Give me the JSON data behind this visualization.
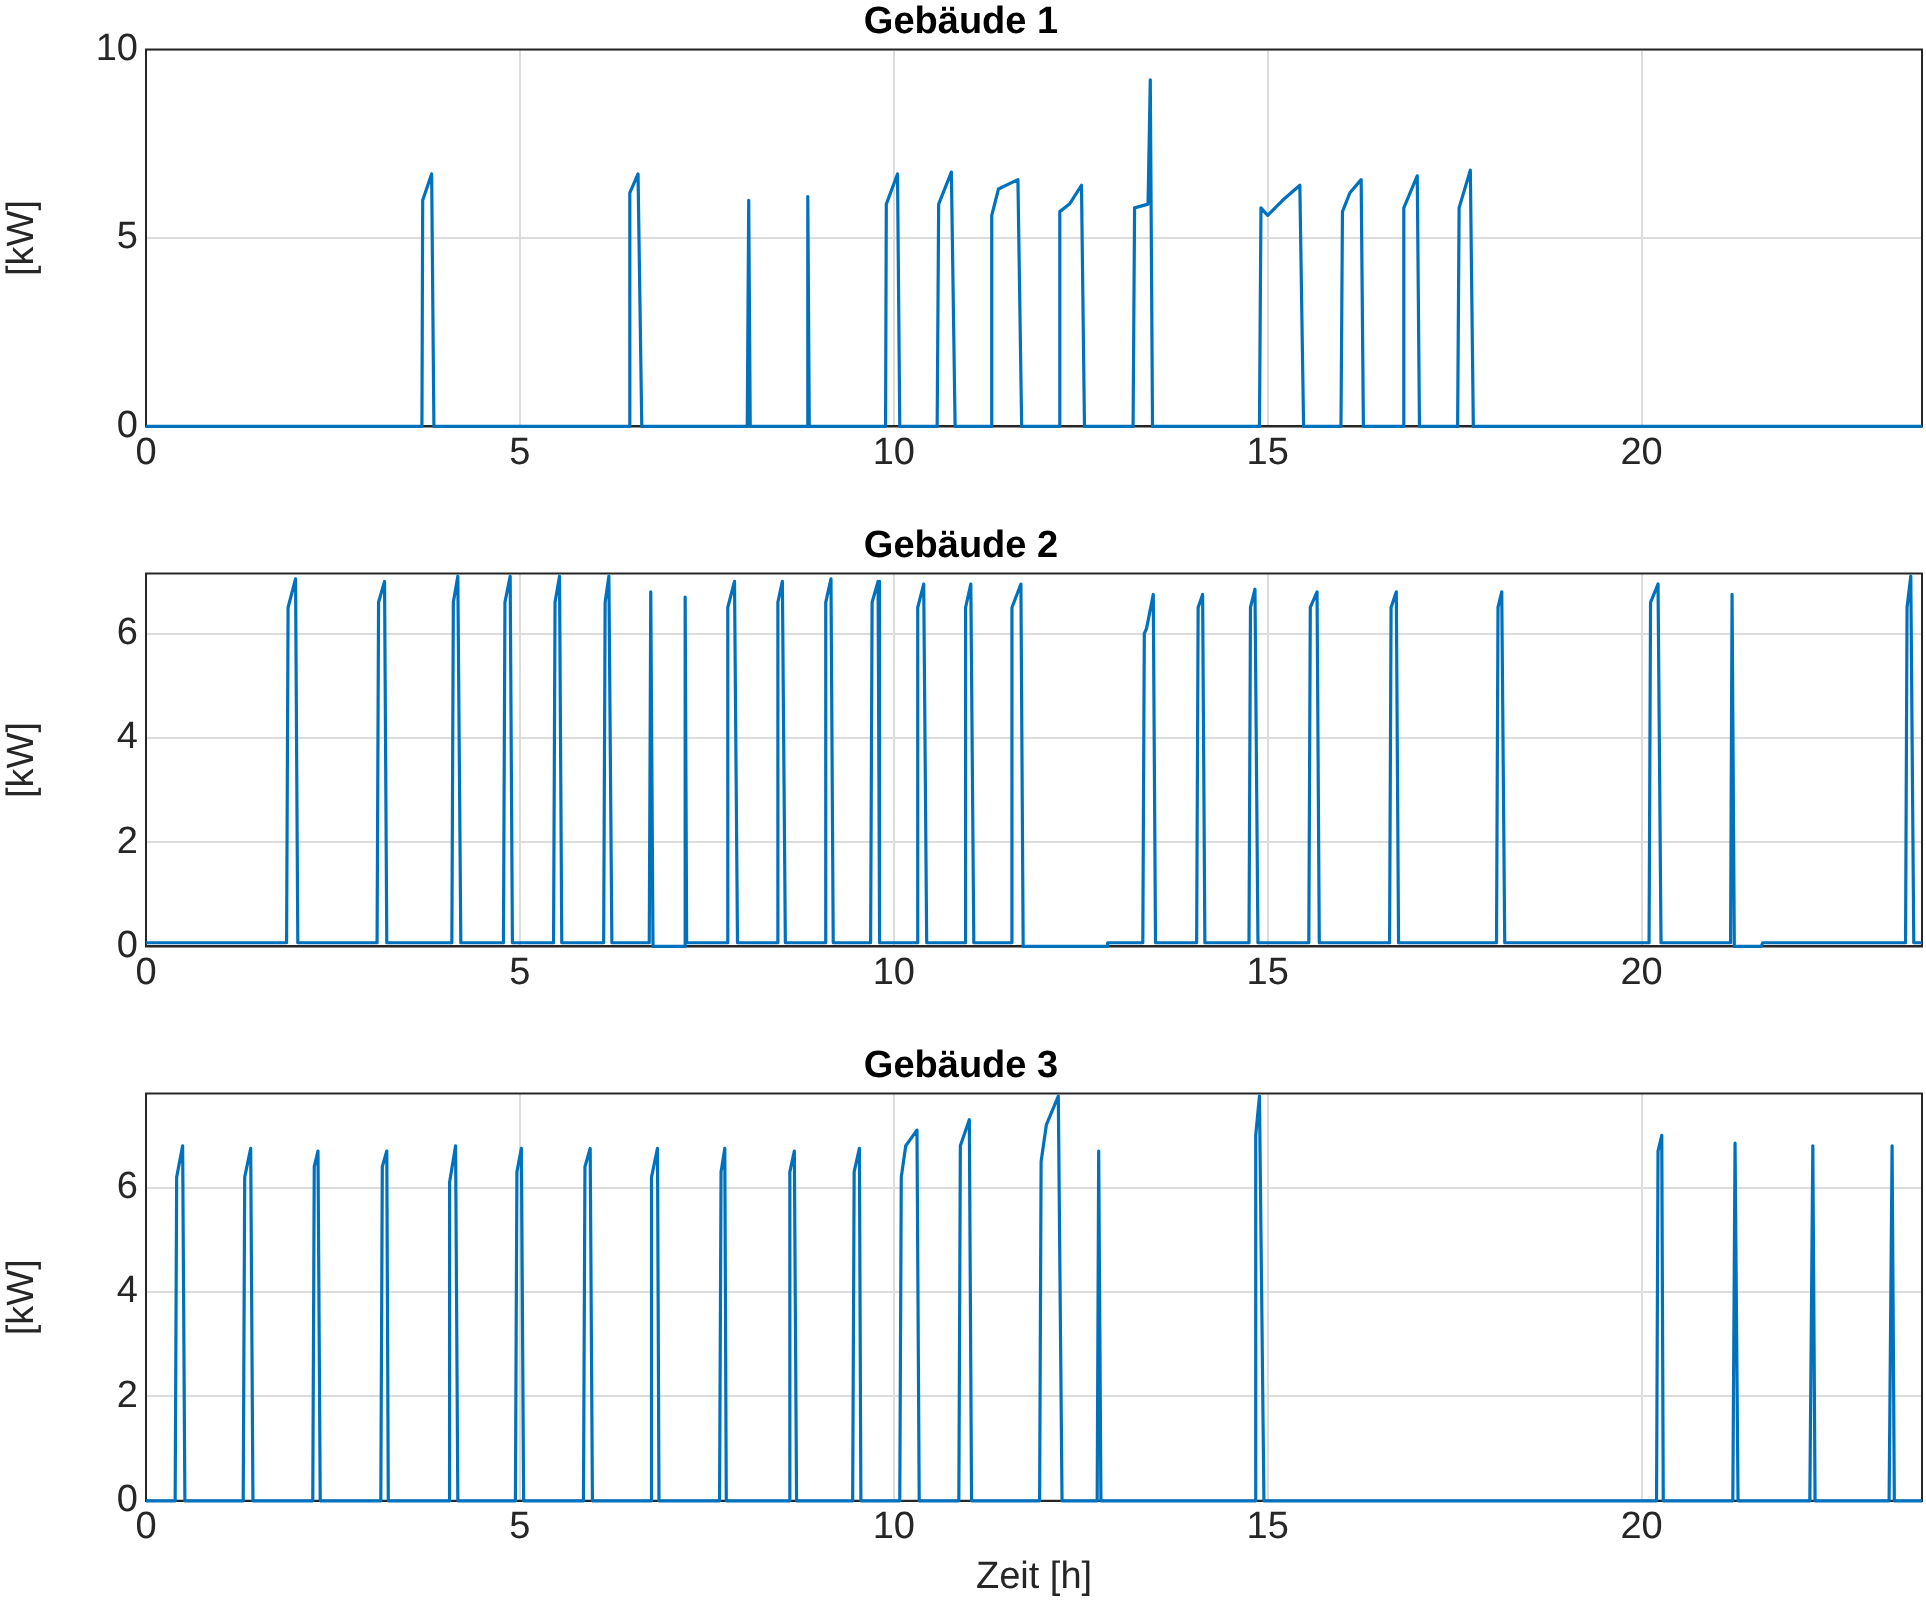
{
  "chart_data": [
    {
      "type": "line",
      "title": "Gebäude 1",
      "ylabel": "[kW]",
      "color": "#0072bd",
      "grid": true,
      "marker": "none",
      "line_style": "solid",
      "xlim": [
        0,
        23.75
      ],
      "xticks": [
        0,
        5,
        10,
        15,
        20
      ],
      "ylim": [
        0,
        10
      ],
      "yticks": [
        0,
        5,
        10
      ],
      "x": [
        0,
        3.69,
        3.7,
        3.82,
        3.85,
        6.45,
        6.47,
        6.58,
        6.63,
        8.04,
        8.06,
        8.08,
        8.83,
        8.85,
        8.87,
        9.89,
        9.9,
        10.05,
        10.08,
        10.58,
        10.6,
        10.77,
        10.82,
        11.29,
        11.31,
        11.4,
        11.66,
        11.71,
        12.2,
        12.22,
        12.35,
        12.51,
        12.55,
        13.2,
        13.22,
        13.4,
        13.43,
        13.46,
        14.89,
        14.91,
        15.0,
        15.2,
        15.43,
        15.48,
        15.98,
        16.0,
        16.1,
        16.25,
        16.28,
        16.8,
        16.82,
        17.0,
        17.03,
        17.54,
        17.56,
        17.71,
        17.75,
        23.75
      ],
      "values": [
        0,
        0,
        6.0,
        6.7,
        0,
        0,
        6.2,
        6.7,
        0,
        0,
        6.0,
        0,
        0,
        6.1,
        0,
        0,
        5.9,
        6.7,
        0,
        0,
        5.9,
        6.75,
        0,
        0,
        5.6,
        6.3,
        6.55,
        0,
        0,
        5.7,
        5.9,
        6.4,
        0,
        0,
        5.8,
        5.9,
        9.2,
        0,
        0,
        5.8,
        5.6,
        6.0,
        6.4,
        0,
        0,
        5.7,
        6.2,
        6.55,
        0,
        0,
        5.8,
        6.65,
        0,
        0,
        5.8,
        6.8,
        0,
        0
      ]
    },
    {
      "type": "line",
      "title": "Gebäude 2",
      "ylabel": "[kW]",
      "color": "#0072bd",
      "grid": true,
      "marker": "none",
      "line_style": "solid",
      "xlim": [
        0,
        23.75
      ],
      "xticks": [
        0,
        5,
        10,
        15,
        20
      ],
      "ylim": [
        0,
        7.15
      ],
      "yticks": [
        0,
        2,
        4,
        6
      ],
      "x": [
        0,
        1.88,
        1.9,
        2.0,
        2.03,
        3.09,
        3.11,
        3.19,
        3.22,
        4.09,
        4.11,
        4.17,
        4.21,
        4.78,
        4.8,
        4.87,
        4.9,
        5.45,
        5.47,
        5.53,
        5.56,
        6.12,
        6.14,
        6.19,
        6.23,
        6.73,
        6.75,
        6.78,
        6.8,
        7.2,
        7.21,
        7.23,
        7.25,
        7.76,
        7.78,
        7.87,
        7.91,
        8.43,
        8.45,
        8.51,
        8.55,
        9.07,
        9.09,
        9.16,
        9.19,
        9.69,
        9.71,
        9.79,
        9.81,
        10.3,
        10.32,
        10.4,
        10.44,
        10.94,
        10.96,
        11.03,
        11.07,
        11.56,
        11.58,
        11.7,
        11.73,
        12.84,
        12.86,
        13.33,
        13.35,
        13.38,
        13.47,
        13.5,
        14.05,
        14.07,
        14.13,
        14.16,
        14.75,
        14.77,
        14.83,
        14.87,
        15.55,
        15.57,
        15.66,
        15.69,
        16.63,
        16.65,
        16.72,
        16.75,
        18.06,
        18.08,
        18.13,
        18.17,
        20.1,
        20.12,
        20.22,
        20.26,
        21.19,
        21.21,
        21.24,
        21.6,
        21.62,
        23.53,
        23.55,
        23.6,
        23.64,
        23.75
      ],
      "values": [
        0.07,
        0.07,
        6.5,
        7.05,
        0.07,
        0.07,
        6.6,
        7.0,
        0.07,
        0.07,
        6.6,
        7.1,
        0.07,
        0.07,
        6.6,
        7.1,
        0.07,
        0.07,
        6.6,
        7.1,
        0.07,
        0.07,
        6.6,
        7.1,
        0.07,
        0.07,
        6.8,
        0,
        0,
        0,
        6.7,
        0.07,
        0.07,
        0.07,
        6.5,
        7.0,
        0.07,
        0.07,
        6.6,
        7.0,
        0.07,
        0.07,
        6.6,
        7.05,
        0.07,
        0.07,
        6.6,
        7.0,
        0.07,
        0.07,
        6.5,
        6.95,
        0.07,
        0.07,
        6.5,
        6.95,
        0.07,
        0.07,
        6.5,
        6.95,
        0,
        0,
        0.07,
        0.07,
        6.0,
        6.1,
        6.75,
        0.07,
        0.07,
        6.5,
        6.75,
        0.07,
        0.07,
        6.5,
        6.85,
        0.07,
        0.07,
        6.5,
        6.8,
        0.07,
        0.07,
        6.5,
        6.8,
        0.07,
        0.07,
        6.5,
        6.8,
        0.07,
        0.07,
        6.6,
        6.95,
        0.07,
        0.07,
        6.75,
        0,
        0,
        0.07,
        0.07,
        6.5,
        7.1,
        0.07,
        0.07
      ]
    },
    {
      "type": "line",
      "title": "Gebäude 3",
      "xlabel": "Zeit [h]",
      "ylabel": "[kW]",
      "color": "#0072bd",
      "grid": true,
      "marker": "none",
      "line_style": "solid",
      "xlim": [
        0,
        23.75
      ],
      "xticks": [
        0,
        5,
        10,
        15,
        20
      ],
      "ylim": [
        0,
        7.8
      ],
      "yticks": [
        0,
        2,
        4,
        6
      ],
      "x": [
        0,
        0.39,
        0.41,
        0.49,
        0.52,
        1.3,
        1.32,
        1.4,
        1.43,
        2.23,
        2.25,
        2.3,
        2.33,
        3.14,
        3.16,
        3.22,
        3.24,
        4.04,
        4.06,
        4.14,
        4.17,
        4.94,
        4.96,
        5.02,
        5.05,
        5.85,
        5.87,
        5.94,
        5.97,
        6.74,
        6.76,
        6.84,
        6.86,
        7.67,
        7.69,
        7.74,
        7.76,
        8.59,
        8.61,
        8.67,
        8.7,
        9.45,
        9.47,
        9.54,
        9.56,
        10.08,
        10.1,
        10.16,
        10.31,
        10.34,
        10.87,
        10.89,
        11.01,
        11.04,
        11.95,
        11.97,
        12.04,
        12.2,
        12.25,
        12.72,
        12.74,
        12.77,
        14.82,
        14.84,
        14.89,
        14.95,
        20.2,
        20.22,
        20.27,
        20.29,
        21.22,
        21.25,
        21.29,
        22.25,
        22.29,
        22.32,
        23.31,
        23.35,
        23.38,
        23.75
      ],
      "values": [
        0,
        0,
        6.2,
        6.8,
        0,
        0,
        6.2,
        6.75,
        0,
        0,
        6.4,
        6.7,
        0,
        0,
        6.4,
        6.7,
        0,
        0,
        6.1,
        6.8,
        0,
        0,
        6.3,
        6.75,
        0,
        0,
        6.4,
        6.75,
        0,
        0,
        6.2,
        6.75,
        0,
        0,
        6.3,
        6.75,
        0,
        0,
        6.3,
        6.7,
        0,
        0,
        6.3,
        6.75,
        0,
        0,
        6.2,
        6.8,
        7.1,
        0,
        0,
        6.8,
        7.3,
        0,
        0,
        6.5,
        7.2,
        7.75,
        0,
        0,
        6.7,
        0,
        0,
        7.0,
        7.75,
        0,
        0,
        6.7,
        7.0,
        0,
        0,
        6.85,
        0,
        0,
        6.8,
        0,
        0,
        6.8,
        0,
        0
      ]
    }
  ]
}
